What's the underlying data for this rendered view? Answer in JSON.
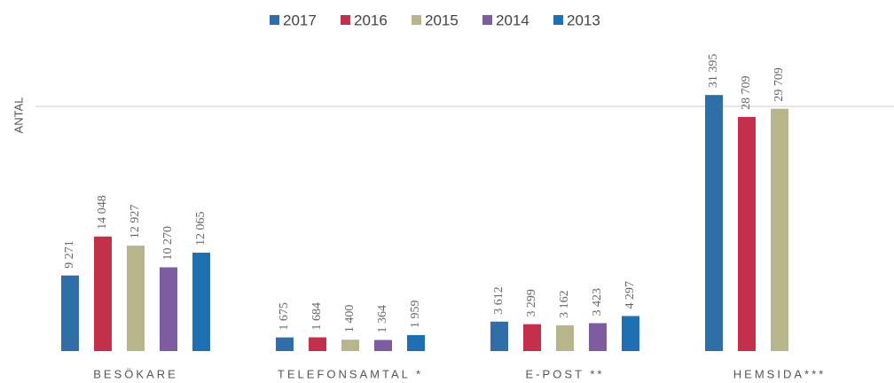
{
  "chart_data": {
    "type": "bar",
    "y_label": "ANTAL",
    "categories": [
      "BESÖKARE",
      "TELEFONSAMTAL *",
      "E-POST **",
      "HEMSIDA***"
    ],
    "series": [
      {
        "name": "2017",
        "color": "#2f6ea6",
        "values": [
          9271,
          1675,
          3612,
          31395
        ],
        "value_labels": [
          "9 271",
          "1 675",
          "3 612",
          "31 395"
        ]
      },
      {
        "name": "2016",
        "color": "#c3304c",
        "values": [
          14048,
          1684,
          3299,
          28709
        ],
        "value_labels": [
          "14 048",
          "1 684",
          "3 299",
          "28 709"
        ]
      },
      {
        "name": "2015",
        "color": "#b8b48c",
        "values": [
          12927,
          1400,
          3162,
          29709
        ],
        "value_labels": [
          "12 927",
          "1 400",
          "3 162",
          "29 709"
        ]
      },
      {
        "name": "2014",
        "color": "#7d5c9f",
        "values": [
          10270,
          1364,
          3423,
          null
        ],
        "value_labels": [
          "10 270",
          "1 364",
          "3 423",
          null
        ]
      },
      {
        "name": "2013",
        "color": "#1f70b2",
        "values": [
          12065,
          1959,
          4297,
          null
        ],
        "value_labels": [
          "12 065",
          "1 959",
          "4 297",
          null
        ]
      }
    ],
    "ylim": [
      0,
      35000
    ],
    "yticks": [
      30000
    ],
    "tick_labels": false,
    "grid": true,
    "legend": "top"
  }
}
